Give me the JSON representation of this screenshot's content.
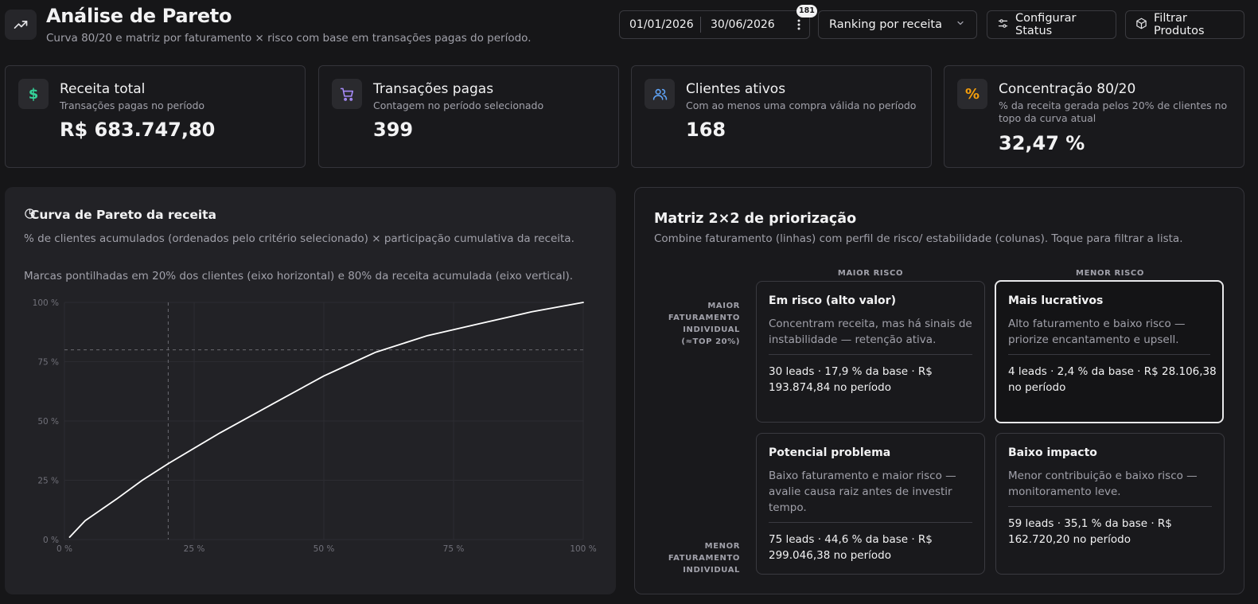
{
  "header": {
    "title": "Análise de Pareto",
    "subtitle": "Curva 80/20 e matriz por faturamento × risco com base em transações pagas do período.",
    "date_start": "01/01/2026",
    "date_end": "30/06/2026",
    "badge_count": "181",
    "ranking_select": "Ranking por receita",
    "configure_status_label": "Configurar Status",
    "filter_products_label": "Filtrar Produtos"
  },
  "kpis": [
    {
      "title": "Receita total",
      "subtitle": "Transações pagas no período",
      "value": "R$ 683.747,80",
      "icon": "dollar-icon"
    },
    {
      "title": "Transações pagas",
      "subtitle": "Contagem no período selecionado",
      "value": "399",
      "icon": "cart-icon"
    },
    {
      "title": "Clientes ativos",
      "subtitle": "Com ao menos uma compra válida no período",
      "value": "168",
      "icon": "users-icon"
    },
    {
      "title": "Concentração 80/20",
      "subtitle": "% da receita gerada pelos 20% de clientes no topo da curva atual",
      "value": "32,47 %",
      "icon": "percent-icon"
    }
  ],
  "chart": {
    "title": "Curva de Pareto da receita",
    "description": "% de clientes acumulados (ordenados pelo critério selecionado) × participação cumulativa da receita.",
    "note": "Marcas pontilhadas em 20% dos clientes (eixo horizontal) e 80% da receita acumulada (eixo vertical)."
  },
  "chart_data": {
    "type": "line",
    "x_ticks": [
      "0 %",
      "25 %",
      "50 %",
      "75 %",
      "100 %"
    ],
    "y_ticks": [
      "0 %",
      "25 %",
      "50 %",
      "75 %",
      "100 %"
    ],
    "xlim": [
      0,
      100
    ],
    "ylim": [
      0,
      100
    ],
    "grid": true,
    "reference_lines": {
      "x": 20,
      "y": 80
    },
    "series": [
      {
        "x": [
          1,
          4,
          10,
          15,
          20,
          30,
          40,
          50,
          55,
          60,
          70,
          80,
          90,
          100
        ],
        "y": [
          1,
          8,
          17,
          25,
          32,
          45,
          57,
          69,
          74,
          79,
          86,
          91,
          96,
          100
        ]
      }
    ]
  },
  "matrix": {
    "title": "Matriz 2×2 de priorização",
    "description": "Combine faturamento (linhas) com perfil de risco/ estabilidade (colunas). Toque para filtrar a lista.",
    "col_high_risk": "MAIOR RISCO",
    "col_low_risk": "MENOR RISCO",
    "row_high_rev": "MAIOR FATURAMENTO INDIVIDUAL (≈TOP 20%)",
    "row_low_rev": "MENOR FATURAMENTO INDIVIDUAL",
    "cells": [
      {
        "title": "Em risco (alto valor)",
        "desc": "Concentram receita, mas há sinais de instabilidade — retenção ativa.",
        "stats": "30 leads · 17,9 % da base · R$ 193.874,84 no período"
      },
      {
        "title": "Mais lucrativos",
        "desc": "Alto faturamento e baixo risco — priorize encantamento e upsell.",
        "stats": "4 leads · 2,4 % da base · R$ 28.106,38 no período"
      },
      {
        "title": "Potencial problema",
        "desc": "Baixo faturamento e maior risco — avalie causa raiz antes de investir tempo.",
        "stats": "75 leads · 44,6 % da base · R$ 299.046,38 no período"
      },
      {
        "title": "Baixo impacto",
        "desc": "Menor contribuição e baixo risco — monitoramento leve.",
        "stats": "59 leads · 35,1 % da base · R$ 162.720,20 no período"
      }
    ]
  },
  "colors": {
    "accent_green": "#34d399",
    "accent_purple": "#a78bfa",
    "accent_blue": "#60a5fa",
    "accent_orange": "#f59e0b"
  }
}
